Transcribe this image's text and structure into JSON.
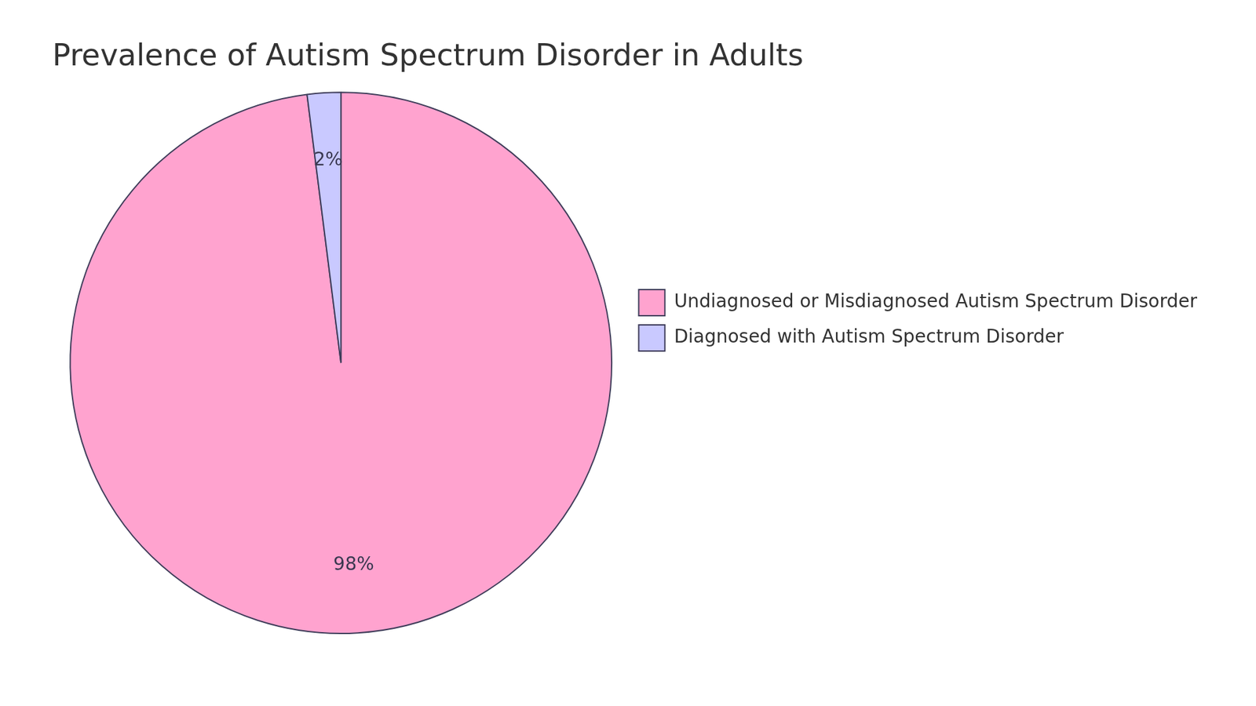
{
  "chart_data": {
    "type": "pie",
    "title": "Prevalence of Autism Spectrum Disorder in Adults",
    "categories": [
      "Undiagnosed or Misdiagnosed Autism Spectrum Disorder",
      "Diagnosed with Autism Spectrum Disorder"
    ],
    "values": [
      98,
      2
    ],
    "value_labels": [
      "98%",
      "2%"
    ],
    "colors": [
      "#ffa3cf",
      "#c9c9ff"
    ],
    "legend": "right",
    "data_labels": true
  }
}
